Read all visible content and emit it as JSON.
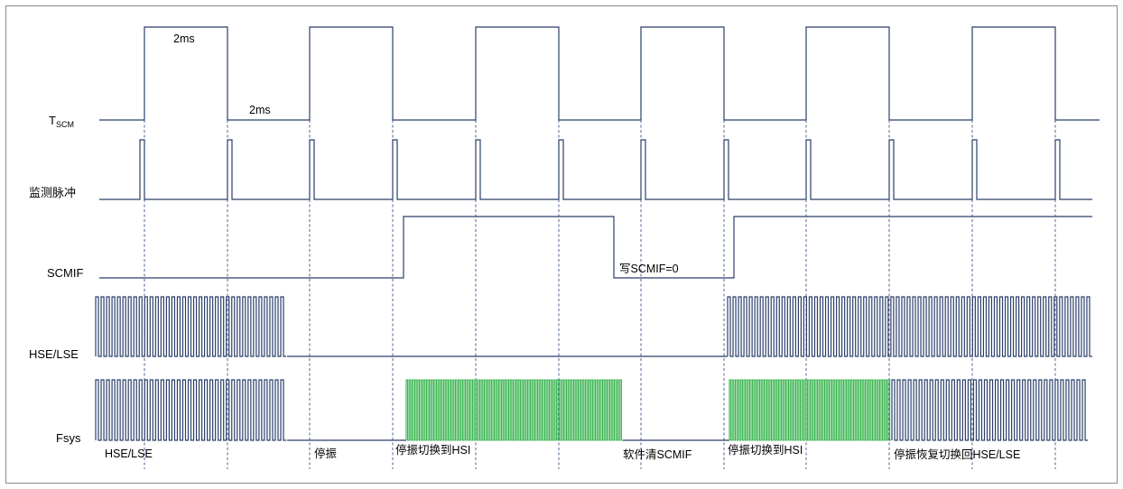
{
  "signals": {
    "tscm": {
      "main": "T",
      "sub": "SCM"
    },
    "monitor_pulse": "监测脉冲",
    "scmif": "SCMIF",
    "hse_lse": "HSE/LSE",
    "fsys": "Fsys"
  },
  "annotations": {
    "high_period": "2ms",
    "low_period": "2ms",
    "write_scmif": "写SCMIF=0"
  },
  "phases": {
    "hse_lse": "HSE/LSE",
    "stop": "停振",
    "switch_hsi_1": "停振切换到HSI",
    "sw_clear": "软件清SCMIF",
    "switch_hsi_2": "停振切换到HSI",
    "recover": "停振恢复切换回HSE/LSE"
  },
  "colors": {
    "waveform": "#2b3f6b",
    "hsi_clock": "#33b24a",
    "guide_lines": "#3a5686",
    "border": "#8c8c8c"
  }
}
